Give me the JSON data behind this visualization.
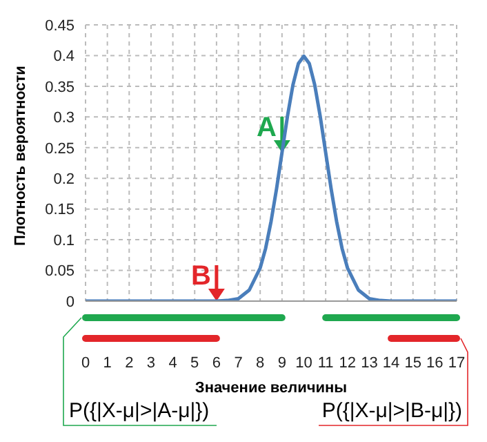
{
  "chart_data": {
    "type": "line",
    "xlabel": "Значение величины",
    "ylabel": "Плотность вероятности",
    "x": [
      0,
      1,
      2,
      3,
      4,
      5,
      5.5,
      6,
      6.5,
      7,
      7.5,
      8,
      8.25,
      8.5,
      8.75,
      9,
      9.25,
      9.5,
      9.75,
      10,
      10.25,
      10.5,
      10.75,
      11,
      11.25,
      11.5,
      11.75,
      12,
      12.5,
      13,
      13.5,
      14,
      14.5,
      15,
      16,
      17
    ],
    "series": [
      {
        "color": "#4a7ebb",
        "values": [
          0,
          0,
          0,
          0,
          0,
          0,
          0,
          0,
          0.001,
          0.004,
          0.018,
          0.054,
          0.086,
          0.13,
          0.183,
          0.242,
          0.301,
          0.352,
          0.387,
          0.399,
          0.387,
          0.352,
          0.301,
          0.242,
          0.183,
          0.13,
          0.086,
          0.054,
          0.018,
          0.004,
          0.001,
          0,
          0,
          0,
          0,
          0
        ]
      }
    ],
    "xlim": [
      0,
      17
    ],
    "xticks": [
      0,
      1,
      2,
      3,
      4,
      5,
      6,
      7,
      8,
      9,
      10,
      11,
      12,
      13,
      14,
      15,
      16,
      17
    ],
    "ylim": [
      0,
      0.45
    ],
    "yticks": [
      0,
      0.05,
      0.1,
      0.15,
      0.2,
      0.25,
      0.3,
      0.35,
      0.4,
      0.45
    ],
    "grid": true,
    "marker": "none",
    "line_style": "solid",
    "legend": false,
    "annotations": [
      {
        "text": "A",
        "x": 9,
        "y": 0.242
      },
      {
        "text": "B",
        "x": 6,
        "y": 0
      },
      "P({|X-μ|>|A-μ|})",
      "P({|X-μ|>|B-μ|})"
    ]
  }
}
